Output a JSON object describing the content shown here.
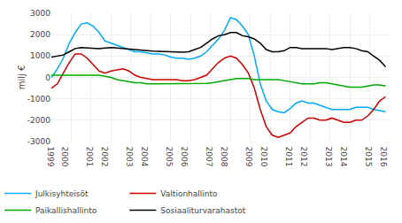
{
  "chart_data": {
    "type": "line",
    "ylabel": "milj €",
    "x": [
      1999.0,
      1999.3,
      1999.6,
      1999.9,
      2000.2,
      2000.5,
      2000.8,
      2001.1,
      2001.4,
      2001.7,
      2002.0,
      2002.3,
      2002.6,
      2002.9,
      2003.2,
      2003.5,
      2003.8,
      2004.1,
      2004.4,
      2004.7,
      2005.0,
      2005.3,
      2005.6,
      2005.9,
      2006.2,
      2006.5,
      2006.8,
      2007.1,
      2007.4,
      2007.7,
      2008.0,
      2008.3,
      2008.6,
      2008.9,
      2009.2,
      2009.5,
      2009.8,
      2010.1,
      2010.4,
      2010.7,
      2011.0,
      2011.3,
      2011.6,
      2011.9,
      2012.2,
      2012.5,
      2012.8,
      2013.1,
      2013.4,
      2013.7,
      2014.0,
      2014.3,
      2014.6,
      2014.9,
      2015.2,
      2015.5,
      2015.8
    ],
    "series": [
      {
        "name": "Julkisyhteisöt",
        "color": "#00aaff",
        "values": [
          0,
          400,
          900,
          1600,
          2100,
          2500,
          2550,
          2400,
          2100,
          1700,
          1600,
          1500,
          1400,
          1300,
          1200,
          1200,
          1150,
          1100,
          1100,
          1050,
          950,
          900,
          900,
          850,
          900,
          1000,
          1200,
          1500,
          1800,
          2200,
          2800,
          2700,
          2400,
          2000,
          1000,
          -300,
          -1100,
          -1500,
          -1600,
          -1650,
          -1450,
          -1200,
          -1100,
          -1200,
          -1200,
          -1300,
          -1400,
          -1500,
          -1500,
          -1500,
          -1500,
          -1400,
          -1400,
          -1400,
          -1500,
          -1550,
          -1600
        ]
      },
      {
        "name": "Valtionhallinto",
        "color": "#cc0000",
        "values": [
          -500,
          -300,
          200,
          700,
          1100,
          1100,
          900,
          600,
          300,
          200,
          300,
          350,
          400,
          300,
          100,
          0,
          -50,
          -100,
          -100,
          -100,
          -100,
          -100,
          -150,
          -150,
          -100,
          0,
          100,
          400,
          700,
          900,
          1000,
          900,
          600,
          200,
          -500,
          -1500,
          -2300,
          -2700,
          -2800,
          -2700,
          -2600,
          -2300,
          -2100,
          -1900,
          -1900,
          -2000,
          -2000,
          -1900,
          -2000,
          -2100,
          -2100,
          -2000,
          -2000,
          -1800,
          -1500,
          -1100,
          -900
        ]
      },
      {
        "name": "Paikallishallinto",
        "color": "#00aa00",
        "values": [
          100,
          100,
          100,
          100,
          100,
          100,
          100,
          100,
          100,
          50,
          0,
          -100,
          -150,
          -200,
          -250,
          -250,
          -300,
          -300,
          -300,
          -300,
          -300,
          -300,
          -280,
          -280,
          -280,
          -280,
          -280,
          -250,
          -200,
          -150,
          -100,
          -50,
          -50,
          -50,
          -100,
          -100,
          -100,
          -100,
          -100,
          -150,
          -200,
          -250,
          -300,
          -300,
          -300,
          -250,
          -250,
          -300,
          -350,
          -400,
          -450,
          -450,
          -450,
          -400,
          -350,
          -350,
          -400
        ]
      },
      {
        "name": "Sosiaaliturvarahastot",
        "color": "#000000",
        "values": [
          950,
          1000,
          1050,
          1200,
          1350,
          1400,
          1380,
          1350,
          1350,
          1380,
          1400,
          1380,
          1350,
          1320,
          1300,
          1280,
          1250,
          1230,
          1220,
          1200,
          1200,
          1190,
          1180,
          1200,
          1300,
          1400,
          1600,
          1800,
          1950,
          2000,
          2100,
          2100,
          1950,
          1900,
          1800,
          1600,
          1300,
          1200,
          1200,
          1250,
          1400,
          1400,
          1350,
          1350,
          1350,
          1350,
          1350,
          1300,
          1350,
          1400,
          1400,
          1350,
          1250,
          1200,
          1000,
          800,
          500
        ]
      }
    ],
    "xlim": [
      1999.0,
      2016.0
    ],
    "xticks": [
      1999,
      2000,
      2001,
      2002,
      2003,
      2004,
      2005,
      2006,
      2007,
      2008,
      2009,
      2010,
      2011,
      2012,
      2013,
      2014,
      2015,
      2016
    ],
    "ylim": [
      -3000,
      3000
    ],
    "yticks": [
      -3000,
      -2000,
      -1000,
      0,
      1000,
      2000,
      3000
    ],
    "grid": true,
    "legend": "lower left"
  }
}
